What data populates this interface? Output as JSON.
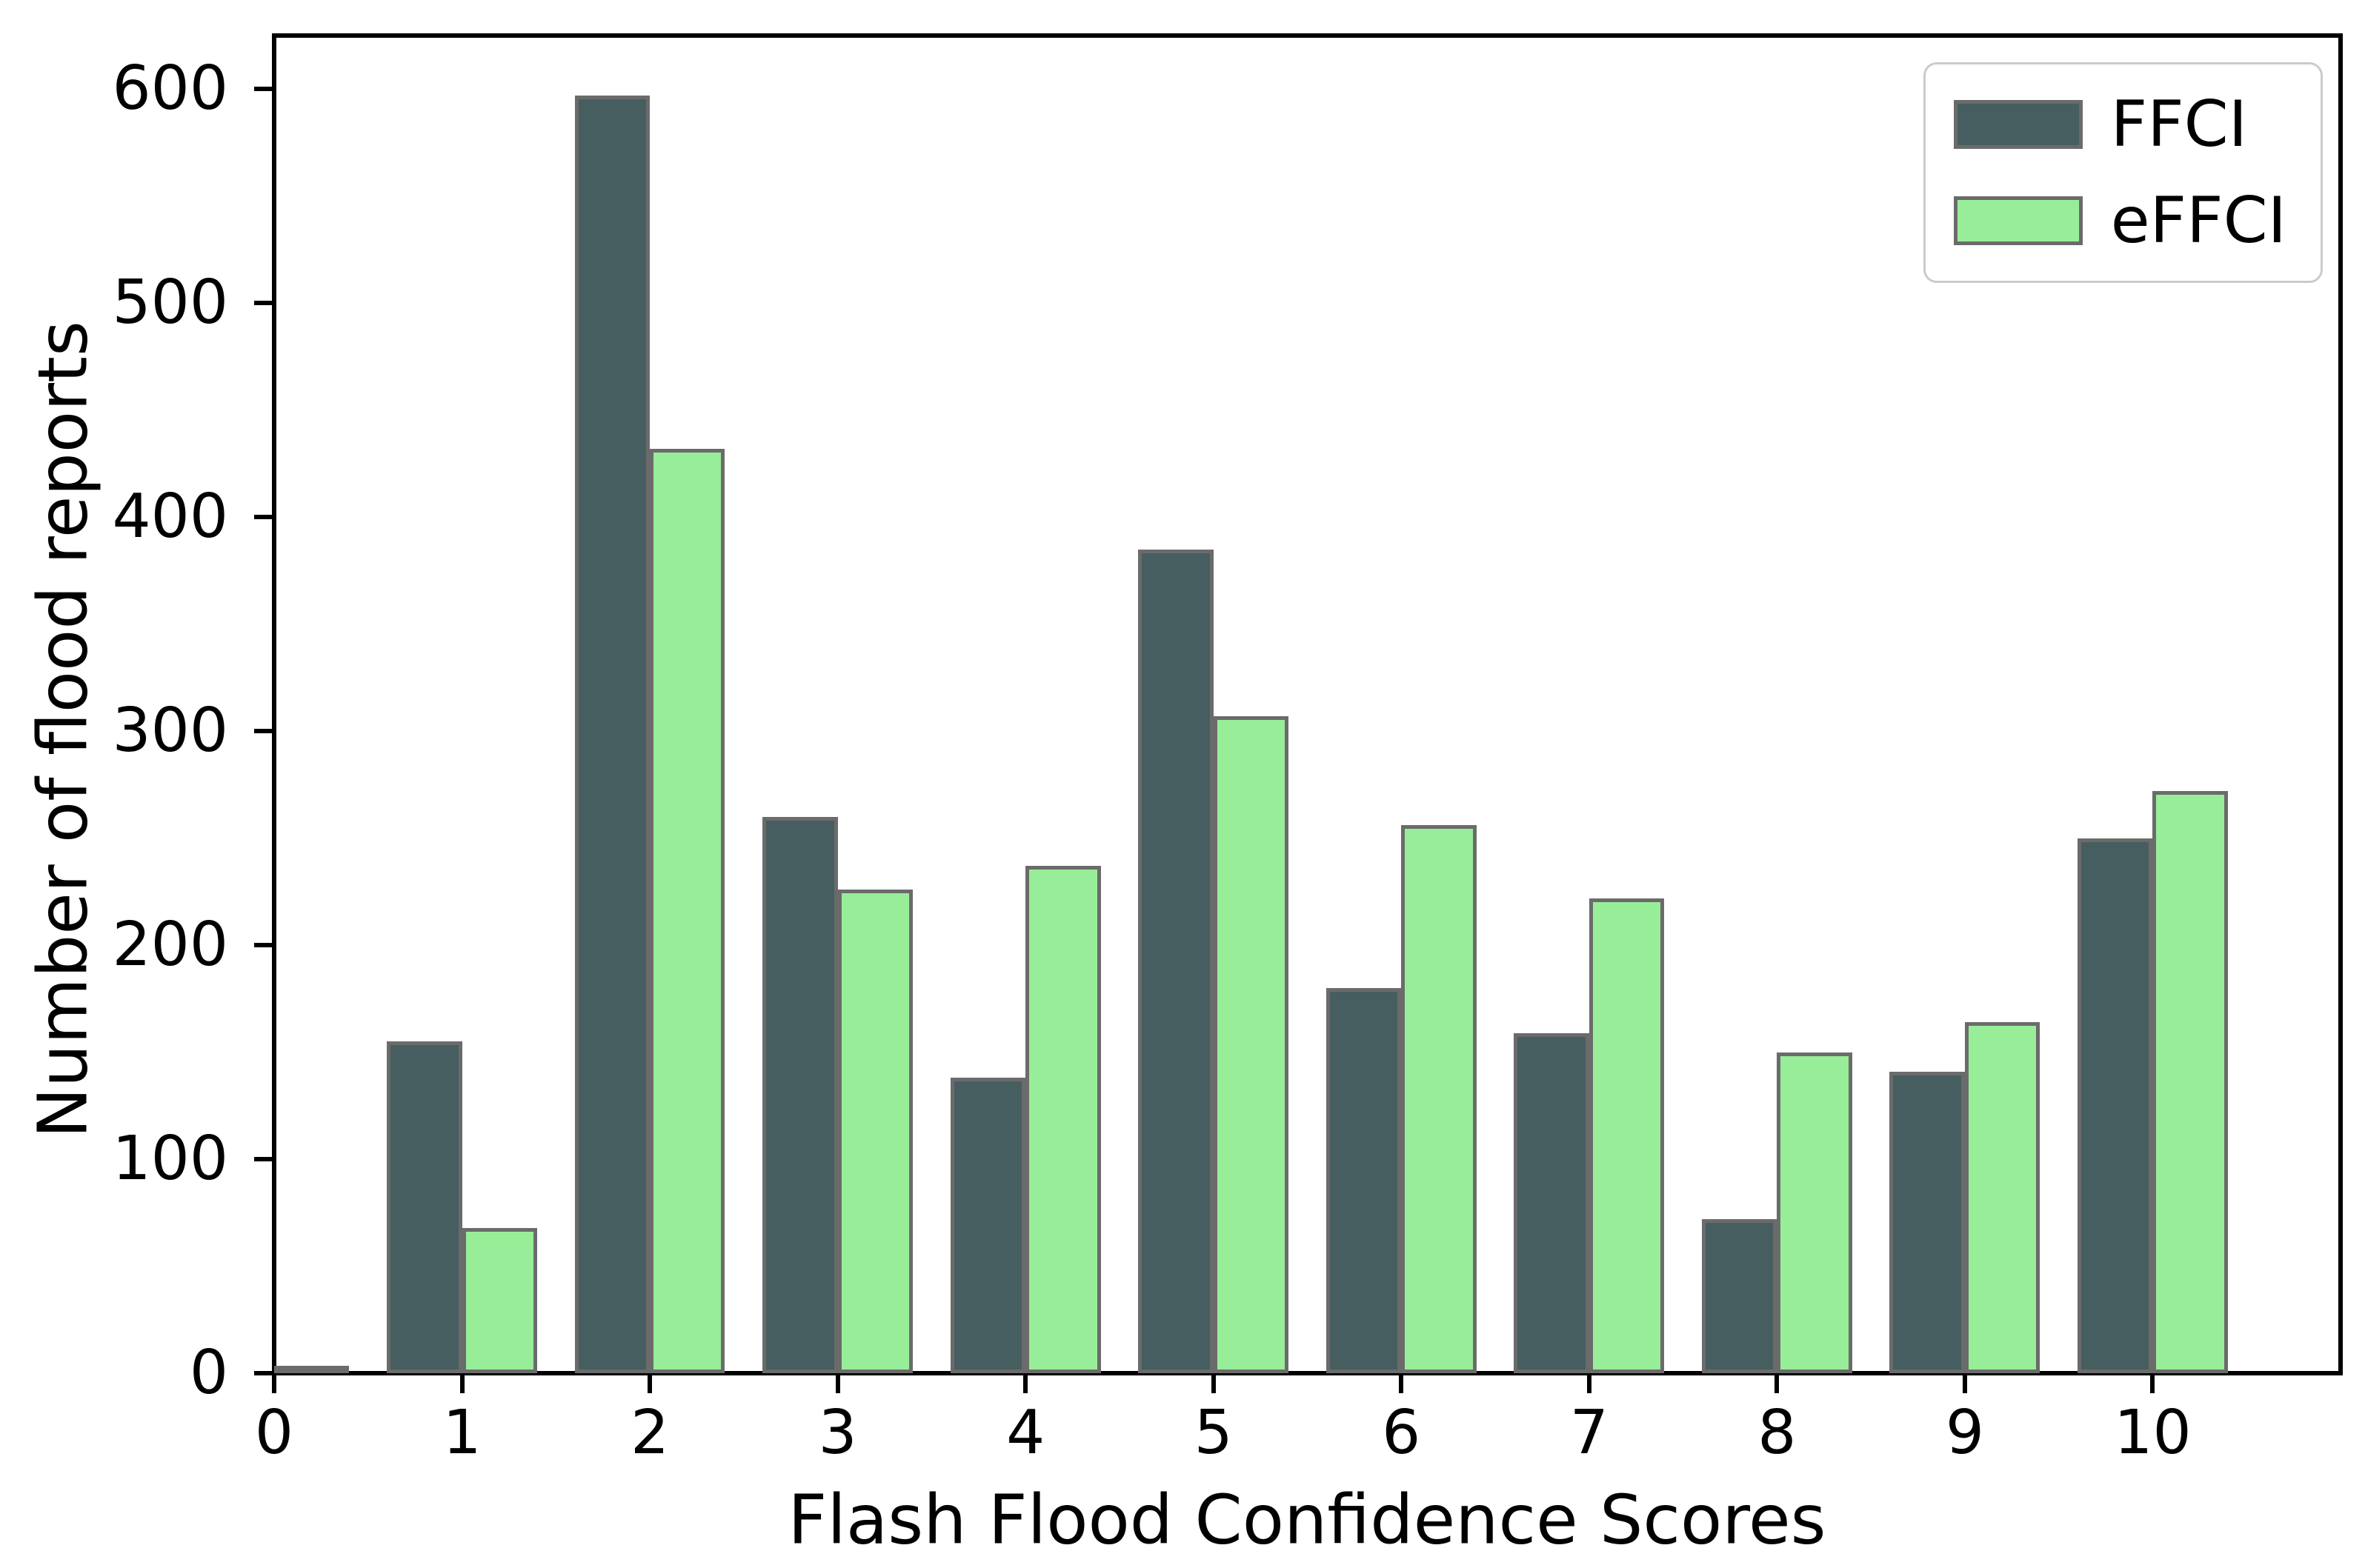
{
  "figure": {
    "background": "#ffffff",
    "spine_color": "#000000"
  },
  "chart_data": {
    "type": "bar",
    "categories": [
      0,
      1,
      2,
      3,
      4,
      5,
      6,
      7,
      8,
      9,
      10
    ],
    "series": [
      {
        "name": "FFCI",
        "color": "#465E5F",
        "values": [
          0,
          155,
          597,
          260,
          138,
          385,
          180,
          159,
          72,
          141,
          250
        ]
      },
      {
        "name": "eFFCI",
        "color": "#98EE98",
        "values": [
          2,
          68,
          432,
          226,
          237,
          307,
          256,
          222,
          150,
          164,
          272
        ]
      }
    ],
    "bar_edge_color": "#6B6B6B",
    "bar_width": 0.4,
    "title": "",
    "xlabel": "Flash Flood Confidence Scores",
    "ylabel": "Number of flood reports",
    "yticks": [
      0,
      100,
      200,
      300,
      400,
      500,
      600
    ],
    "xticks": [
      0,
      1,
      2,
      3,
      4,
      5,
      6,
      7,
      8,
      9,
      10
    ],
    "xlim": [
      0,
      11
    ],
    "ylim": [
      0,
      625
    ],
    "grid": false,
    "legend_position": "upper right"
  },
  "legend": {
    "items": [
      {
        "label": "FFCI"
      },
      {
        "label": "eFFCI"
      }
    ]
  }
}
